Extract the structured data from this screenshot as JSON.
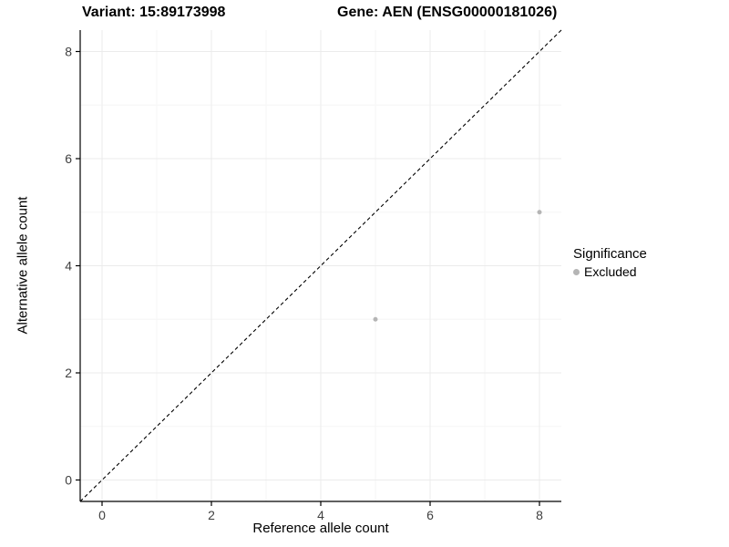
{
  "chart_data": {
    "type": "scatter",
    "title_left": "Variant: 15:89173998",
    "title_right": "Gene: AEN (ENSG00000181026)",
    "xlabel": "Reference allele count",
    "ylabel": "Alternative allele count",
    "xlim": [
      -0.4,
      8.4
    ],
    "ylim": [
      -0.4,
      8.4
    ],
    "xticks": [
      0,
      2,
      4,
      6,
      8
    ],
    "yticks": [
      0,
      2,
      4,
      6,
      8
    ],
    "grid": true,
    "major_grid_color": "#ebebeb",
    "minor_grid_color": "#f6f6f6",
    "identity_line": {
      "style": "dashed",
      "color": "#000000"
    },
    "points": [
      {
        "x": 5,
        "y": 3
      },
      {
        "x": 8,
        "y": 5
      }
    ],
    "point_color": "#b5b5b5",
    "point_radius": 2.5,
    "axis_line_color": "#000000",
    "tick_label_color": "#404040",
    "legend": {
      "title": "Significance",
      "position": "right",
      "items": [
        {
          "label": "Excluded",
          "color": "#b5b5b5"
        }
      ]
    }
  }
}
